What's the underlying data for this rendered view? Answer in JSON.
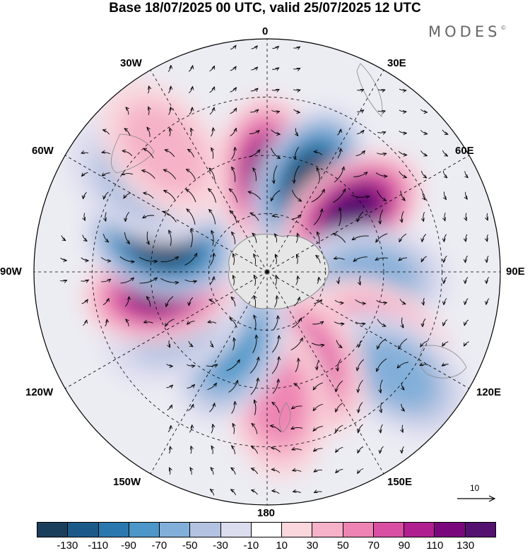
{
  "title": "Base 18/07/2025 00 UTC, valid 25/07/2025 12 UTC",
  "brand": "MODES",
  "brand_mark": "©",
  "longitude_labels": {
    "lon_0": "0",
    "lon_30e": "30E",
    "lon_60e": "60E",
    "lon_90e": "90E",
    "lon_120e": "120E",
    "lon_150e": "150E",
    "lon_180": "180",
    "lon_150w": "150W",
    "lon_120w": "120W",
    "lon_90w": "90W",
    "lon_60w": "60W",
    "lon_30w": "30W"
  },
  "reference_vector": {
    "label": "10"
  },
  "colorbar": {
    "colors": [
      "#1a3f5c",
      "#1b5a88",
      "#2b78ae",
      "#4c97c8",
      "#82afd9",
      "#b3c2e0",
      "#dcdcef",
      "#ffffff",
      "#f9d7dd",
      "#f6b2c8",
      "#ee84b3",
      "#d94fa3",
      "#b0208e",
      "#7a087c",
      "#541170"
    ],
    "tick_labels": [
      "-130",
      "-110",
      "-90",
      "-70",
      "-50",
      "-30",
      "-10",
      "10",
      "30",
      "50",
      "70",
      "90",
      "110",
      "130"
    ]
  },
  "anomaly_cells": [
    {
      "lon": 0,
      "colat": 38,
      "value": 110
    },
    {
      "lon": 25,
      "colat": 38,
      "value": -130
    },
    {
      "lon": 55,
      "colat": 40,
      "value": 130
    },
    {
      "lon": 93,
      "colat": 40,
      "value": -50
    },
    {
      "lon": 120,
      "colat": 50,
      "value": 50
    },
    {
      "lon": 128,
      "colat": 64,
      "value": -50
    },
    {
      "lon": 155,
      "colat": 38,
      "value": 70
    },
    {
      "lon": 175,
      "colat": 50,
      "value": 50
    },
    {
      "lon": 205,
      "colat": 32,
      "value": -70
    },
    {
      "lon": 240,
      "colat": 40,
      "value": -30
    },
    {
      "lon": 260,
      "colat": 42,
      "value": 110
    },
    {
      "lon": 285,
      "colat": 42,
      "value": -130
    },
    {
      "lon": 305,
      "colat": 60,
      "value": -30
    },
    {
      "lon": 320,
      "colat": 62,
      "value": 30
    }
  ]
}
